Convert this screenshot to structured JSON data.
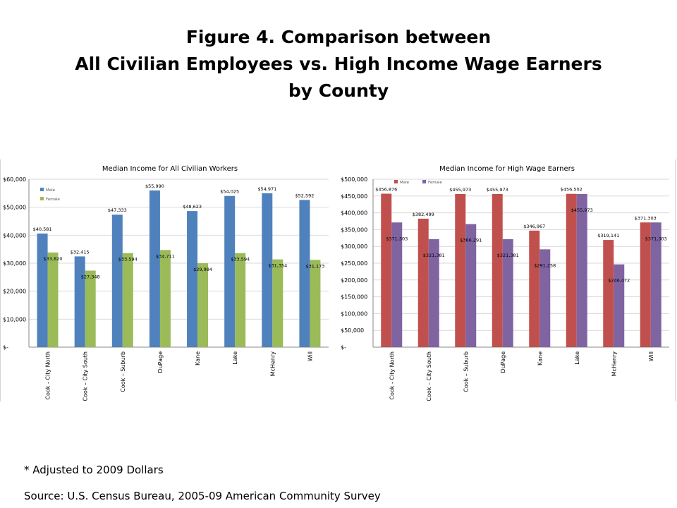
{
  "title_lines": [
    "Figure 4. Comparison between",
    "All Civilian Employees vs. High Income Wage Earners",
    "by County"
  ],
  "footnote": "* Adjusted to 2009 Dollars",
  "source": "Source:  U.S. Census Bureau, 2005-09 American Community Survey",
  "chart_data": [
    {
      "type": "bar",
      "title": "Median Income for All Civilian Workers",
      "categories": [
        "Cook - City North",
        "Cook – City South",
        "Cook – Suburb",
        "DuPage",
        "Kane",
        "Lake",
        "McHenry",
        "Will"
      ],
      "series": [
        {
          "name": "Male",
          "color": "#4F81BD",
          "values": [
            40581,
            32415,
            47333,
            55990,
            48623,
            54025,
            54971,
            52592
          ],
          "labels": [
            "$40,581",
            "$32,415",
            "$47,333",
            "$55,990",
            "$48,623",
            "$54,025",
            "$54,971",
            "$52,592"
          ]
        },
        {
          "name": "Female",
          "color": "#9BBB59",
          "values": [
            33820,
            27348,
            33594,
            34711,
            29984,
            33594,
            31354,
            31173
          ],
          "labels": [
            "$33,820",
            "$27,348",
            "$33,594",
            "$34,711",
            "$29,984",
            "$33,594",
            "$31,354",
            "$31,173"
          ]
        }
      ],
      "ylim": [
        0,
        60000
      ],
      "yticks": [
        "$-",
        "$10,000",
        "$20,000",
        "$30,000",
        "$40,000",
        "$50,000",
        "$60,000"
      ],
      "legend": "top-left"
    },
    {
      "type": "bar",
      "title": "Median Income for High Wage Earners",
      "categories": [
        "Cook - City North",
        "Cook – City South",
        "Cook – Suburb",
        "DuPage",
        "Kane",
        "Lake",
        "McHenry",
        "Will"
      ],
      "series": [
        {
          "name": "Male",
          "color": "#C0504D",
          "values": [
            456876,
            382499,
            455973,
            455973,
            346967,
            456502,
            319141,
            371303
          ],
          "labels": [
            "$456,876",
            "$382,499",
            "$455,973",
            "$455,973",
            "$346,967",
            "$456,502",
            "$319,141",
            "$371,303"
          ]
        },
        {
          "name": "Female",
          "color": "#8064A2",
          "values": [
            371303,
            321381,
            366291,
            321381,
            291258,
            455973,
            246472,
            371303
          ],
          "labels": [
            "$371,303",
            "$321,381",
            "$366,291",
            "$321,381",
            "$291,258",
            "$455,973",
            "$246,472",
            "$371,303"
          ]
        }
      ],
      "ylim": [
        0,
        500000
      ],
      "yticks": [
        "$-",
        "$50,000",
        "$100,000",
        "$150,000",
        "$200,000",
        "$250,000",
        "$300,000",
        "$350,000",
        "$400,000",
        "$450,000",
        "$500,000"
      ],
      "legend": "top-left"
    }
  ]
}
